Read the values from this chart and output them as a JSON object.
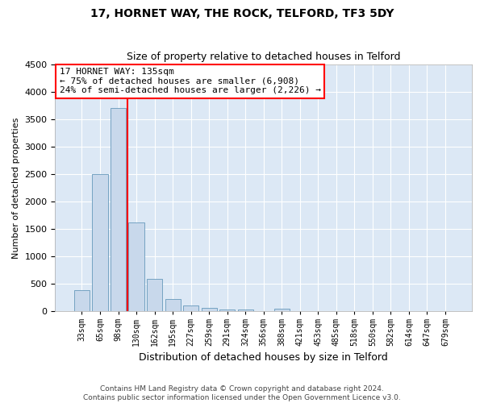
{
  "title": "17, HORNET WAY, THE ROCK, TELFORD, TF3 5DY",
  "subtitle": "Size of property relative to detached houses in Telford",
  "xlabel": "Distribution of detached houses by size in Telford",
  "ylabel": "Number of detached properties",
  "bar_categories": [
    "33sqm",
    "65sqm",
    "98sqm",
    "130sqm",
    "162sqm",
    "195sqm",
    "227sqm",
    "259sqm",
    "291sqm",
    "324sqm",
    "356sqm",
    "388sqm",
    "421sqm",
    "453sqm",
    "485sqm",
    "518sqm",
    "550sqm",
    "582sqm",
    "614sqm",
    "647sqm",
    "679sqm"
  ],
  "bar_values": [
    390,
    2500,
    3700,
    1620,
    590,
    230,
    110,
    60,
    40,
    30,
    0,
    50,
    0,
    0,
    0,
    0,
    0,
    0,
    0,
    0,
    0
  ],
  "bar_color": "#c8d8eb",
  "bar_edge_color": "#6699bb",
  "vline_pos": 2.5,
  "vline_color": "red",
  "annotation_text": "17 HORNET WAY: 135sqm\n← 75% of detached houses are smaller (6,908)\n24% of semi-detached houses are larger (2,226) →",
  "annotation_box_facecolor": "white",
  "annotation_box_edgecolor": "red",
  "ylim_max": 4500,
  "yticks": [
    0,
    500,
    1000,
    1500,
    2000,
    2500,
    3000,
    3500,
    4000,
    4500
  ],
  "bg_color": "#dce8f5",
  "footer_line1": "Contains HM Land Registry data © Crown copyright and database right 2024.",
  "footer_line2": "Contains public sector information licensed under the Open Government Licence v3.0.",
  "title_fontsize": 10,
  "subtitle_fontsize": 9,
  "ylabel_fontsize": 8,
  "xlabel_fontsize": 9,
  "ytick_fontsize": 8,
  "xtick_fontsize": 7,
  "annotation_fontsize": 8,
  "footer_fontsize": 6.5
}
